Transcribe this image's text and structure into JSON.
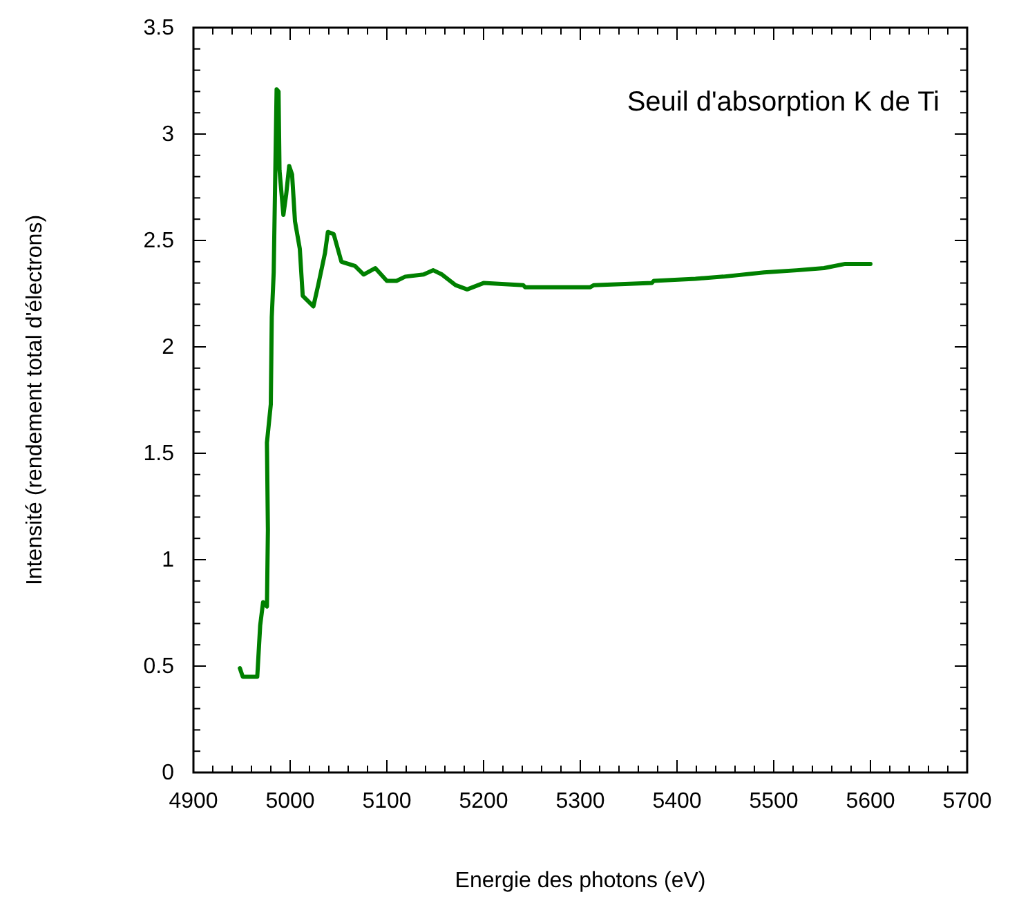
{
  "chart_data": {
    "type": "line",
    "title": "Seuil d'absorption K de Ti",
    "xlabel": "Energie des photons (eV)",
    "ylabel": "Intensité (rendement total d'électrons)",
    "x": [
      4948,
      4951,
      4966,
      4969,
      4972,
      4976,
      4977,
      4976,
      4980,
      4981,
      4983,
      4986,
      4988,
      4989,
      4993,
      4996,
      4999,
      5002,
      5005,
      5010,
      5013,
      5024,
      5029,
      5036,
      5039,
      5045,
      5053,
      5067,
      5076,
      5088,
      5100,
      5110,
      5119,
      5138,
      5148,
      5157,
      5171,
      5183,
      5200,
      5241,
      5243,
      5310,
      5314,
      5374,
      5376,
      5419,
      5448,
      5490,
      5524,
      5552,
      5574,
      5600
    ],
    "series": [
      {
        "color": "#008000",
        "values": [
          0.49,
          0.45,
          0.45,
          0.69,
          0.8,
          0.78,
          1.14,
          1.55,
          1.73,
          2.14,
          2.35,
          3.21,
          3.2,
          2.83,
          2.62,
          2.72,
          2.85,
          2.81,
          2.59,
          2.46,
          2.24,
          2.19,
          2.29,
          2.44,
          2.54,
          2.53,
          2.4,
          2.38,
          2.34,
          2.37,
          2.31,
          2.31,
          2.33,
          2.34,
          2.36,
          2.34,
          2.29,
          2.27,
          2.3,
          2.29,
          2.28,
          2.28,
          2.29,
          2.3,
          2.31,
          2.32,
          2.33,
          2.35,
          2.36,
          2.37,
          2.39,
          2.39
        ]
      }
    ],
    "xlim": [
      4900,
      5700
    ],
    "xticks": [
      4900,
      5000,
      5100,
      5200,
      5300,
      5400,
      5500,
      5600,
      5700
    ],
    "ylim": [
      0,
      3.5
    ],
    "yticks": [
      0,
      0.5,
      1,
      1.5,
      2,
      2.5,
      3,
      3.5
    ],
    "marker": "none",
    "line_style": "solid"
  }
}
